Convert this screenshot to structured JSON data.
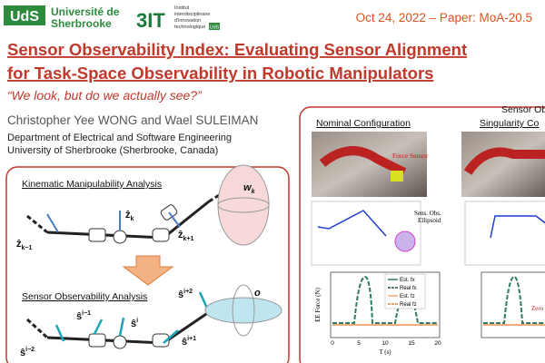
{
  "header": {
    "uds_logo": "UdS",
    "uds_name": [
      "Université de",
      "Sherbrooke"
    ],
    "threeit_logo": "3IT",
    "threeit_name": [
      "Institut",
      "interdisciplinaire",
      "d'innovation",
      "technologique"
    ],
    "threeit_badge": "UdS",
    "date": "Oct 24, 2022 – Paper: MoA-20.5"
  },
  "title": [
    "Sensor Observability Index: Evaluating Sensor Alignment",
    "for Task-Space Observability in Robotic Manipulators"
  ],
  "subtitle": "“We look, but do we actually see?”",
  "authors": "Christopher Yee WONG and Wael SULEIMAN",
  "affiliation": [
    "Department of Electrical and Software Engineering",
    "University of Sherbrooke (Sherbrooke, Canada)"
  ],
  "left_panel": {
    "kinematic_heading": "Kinematic Manipulability Analysis",
    "sensor_heading": "Sensor Observability Analysis",
    "kinematic_labels": [
      {
        "base": "ẑ",
        "sub": "k−1"
      },
      {
        "base": "ẑ",
        "sub": "k"
      },
      {
        "base": "ẑ",
        "sub": "k+1"
      },
      {
        "base": "w",
        "sub": "k"
      }
    ],
    "sensor_labels": [
      {
        "base": "ŝ",
        "sup": "i−2"
      },
      {
        "base": "ŝ",
        "sup": "i−1"
      },
      {
        "base": "ŝ",
        "sup": "i"
      },
      {
        "base": "ŝ",
        "sup": "i+1"
      },
      {
        "base": "ŝ",
        "sup": "i+2"
      },
      {
        "base": "o",
        "sup": ""
      }
    ]
  },
  "right_panel": {
    "nominal_heading": "Nominal Configuration",
    "singular_heading": [
      "Sensor Obs",
      "Singularity Co"
    ],
    "force_sensor": "Force Sensor",
    "ellipsoid_label": [
      "Sens. Obs.",
      "Ellipsoid"
    ],
    "legend": [
      "Est. fx",
      "Real fx",
      "Est. fz",
      "Real fz"
    ],
    "y_label": "EE Force (N)",
    "x_label": "T (s)",
    "x_ticks": [
      "0",
      "5",
      "10",
      "15",
      "20"
    ],
    "zero_label": "Zero"
  }
}
